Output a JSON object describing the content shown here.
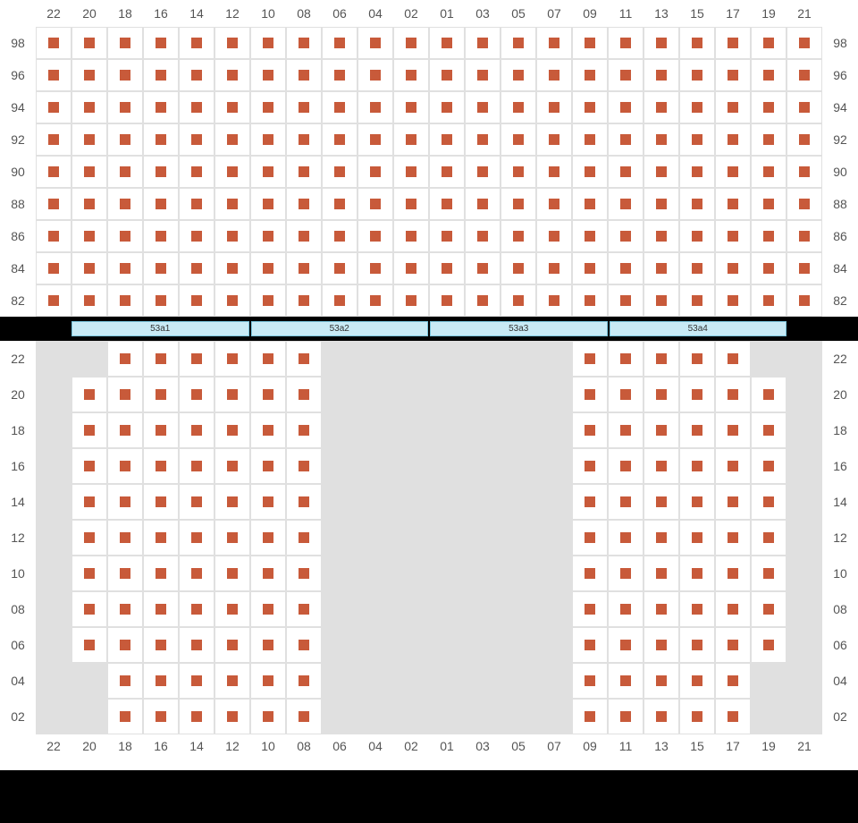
{
  "seating_chart": {
    "seat_marker_color": "#c85a3a",
    "available_bg": "#ffffff",
    "disabled_bg": "#e0e0e0",
    "grid_border_color": "#e0e0e0",
    "section_bar_bg": "#c8eaf5",
    "section_bar_border": "#7ac5dd",
    "label_color": "#555555",
    "columns": [
      "22",
      "20",
      "18",
      "16",
      "14",
      "12",
      "10",
      "08",
      "06",
      "04",
      "02",
      "01",
      "03",
      "05",
      "07",
      "09",
      "11",
      "13",
      "15",
      "17",
      "19",
      "21"
    ],
    "upper_block": {
      "rows": [
        "98",
        "96",
        "94",
        "92",
        "90",
        "88",
        "86",
        "84",
        "82"
      ],
      "all_available": true
    },
    "sections": [
      "53a1",
      "53a2",
      "53a3",
      "53a4"
    ],
    "lower_block": {
      "rows": [
        "22",
        "20",
        "18",
        "16",
        "14",
        "12",
        "10",
        "08",
        "06",
        "04",
        "02"
      ],
      "layout_comment": "cols 22,20 and 19,21 mostly disabled; middle cols 06-07 disabled; rows 22,04,02 have extra edge disabled",
      "available_mask": [
        [
          0,
          0,
          1,
          1,
          1,
          1,
          1,
          1,
          0,
          0,
          0,
          0,
          0,
          0,
          0,
          1,
          1,
          1,
          1,
          1,
          0,
          0
        ],
        [
          0,
          1,
          1,
          1,
          1,
          1,
          1,
          1,
          0,
          0,
          0,
          0,
          0,
          0,
          0,
          1,
          1,
          1,
          1,
          1,
          1,
          0
        ],
        [
          0,
          1,
          1,
          1,
          1,
          1,
          1,
          1,
          0,
          0,
          0,
          0,
          0,
          0,
          0,
          1,
          1,
          1,
          1,
          1,
          1,
          0
        ],
        [
          0,
          1,
          1,
          1,
          1,
          1,
          1,
          1,
          0,
          0,
          0,
          0,
          0,
          0,
          0,
          1,
          1,
          1,
          1,
          1,
          1,
          0
        ],
        [
          0,
          1,
          1,
          1,
          1,
          1,
          1,
          1,
          0,
          0,
          0,
          0,
          0,
          0,
          0,
          1,
          1,
          1,
          1,
          1,
          1,
          0
        ],
        [
          0,
          1,
          1,
          1,
          1,
          1,
          1,
          1,
          0,
          0,
          0,
          0,
          0,
          0,
          0,
          1,
          1,
          1,
          1,
          1,
          1,
          0
        ],
        [
          0,
          1,
          1,
          1,
          1,
          1,
          1,
          1,
          0,
          0,
          0,
          0,
          0,
          0,
          0,
          1,
          1,
          1,
          1,
          1,
          1,
          0
        ],
        [
          0,
          1,
          1,
          1,
          1,
          1,
          1,
          1,
          0,
          0,
          0,
          0,
          0,
          0,
          0,
          1,
          1,
          1,
          1,
          1,
          1,
          0
        ],
        [
          0,
          1,
          1,
          1,
          1,
          1,
          1,
          1,
          0,
          0,
          0,
          0,
          0,
          0,
          0,
          1,
          1,
          1,
          1,
          1,
          1,
          0
        ],
        [
          0,
          0,
          1,
          1,
          1,
          1,
          1,
          1,
          0,
          0,
          0,
          0,
          0,
          0,
          0,
          1,
          1,
          1,
          1,
          1,
          0,
          0
        ],
        [
          0,
          0,
          1,
          1,
          1,
          1,
          1,
          1,
          0,
          0,
          0,
          0,
          0,
          0,
          0,
          1,
          1,
          1,
          1,
          1,
          0,
          0
        ]
      ]
    }
  }
}
